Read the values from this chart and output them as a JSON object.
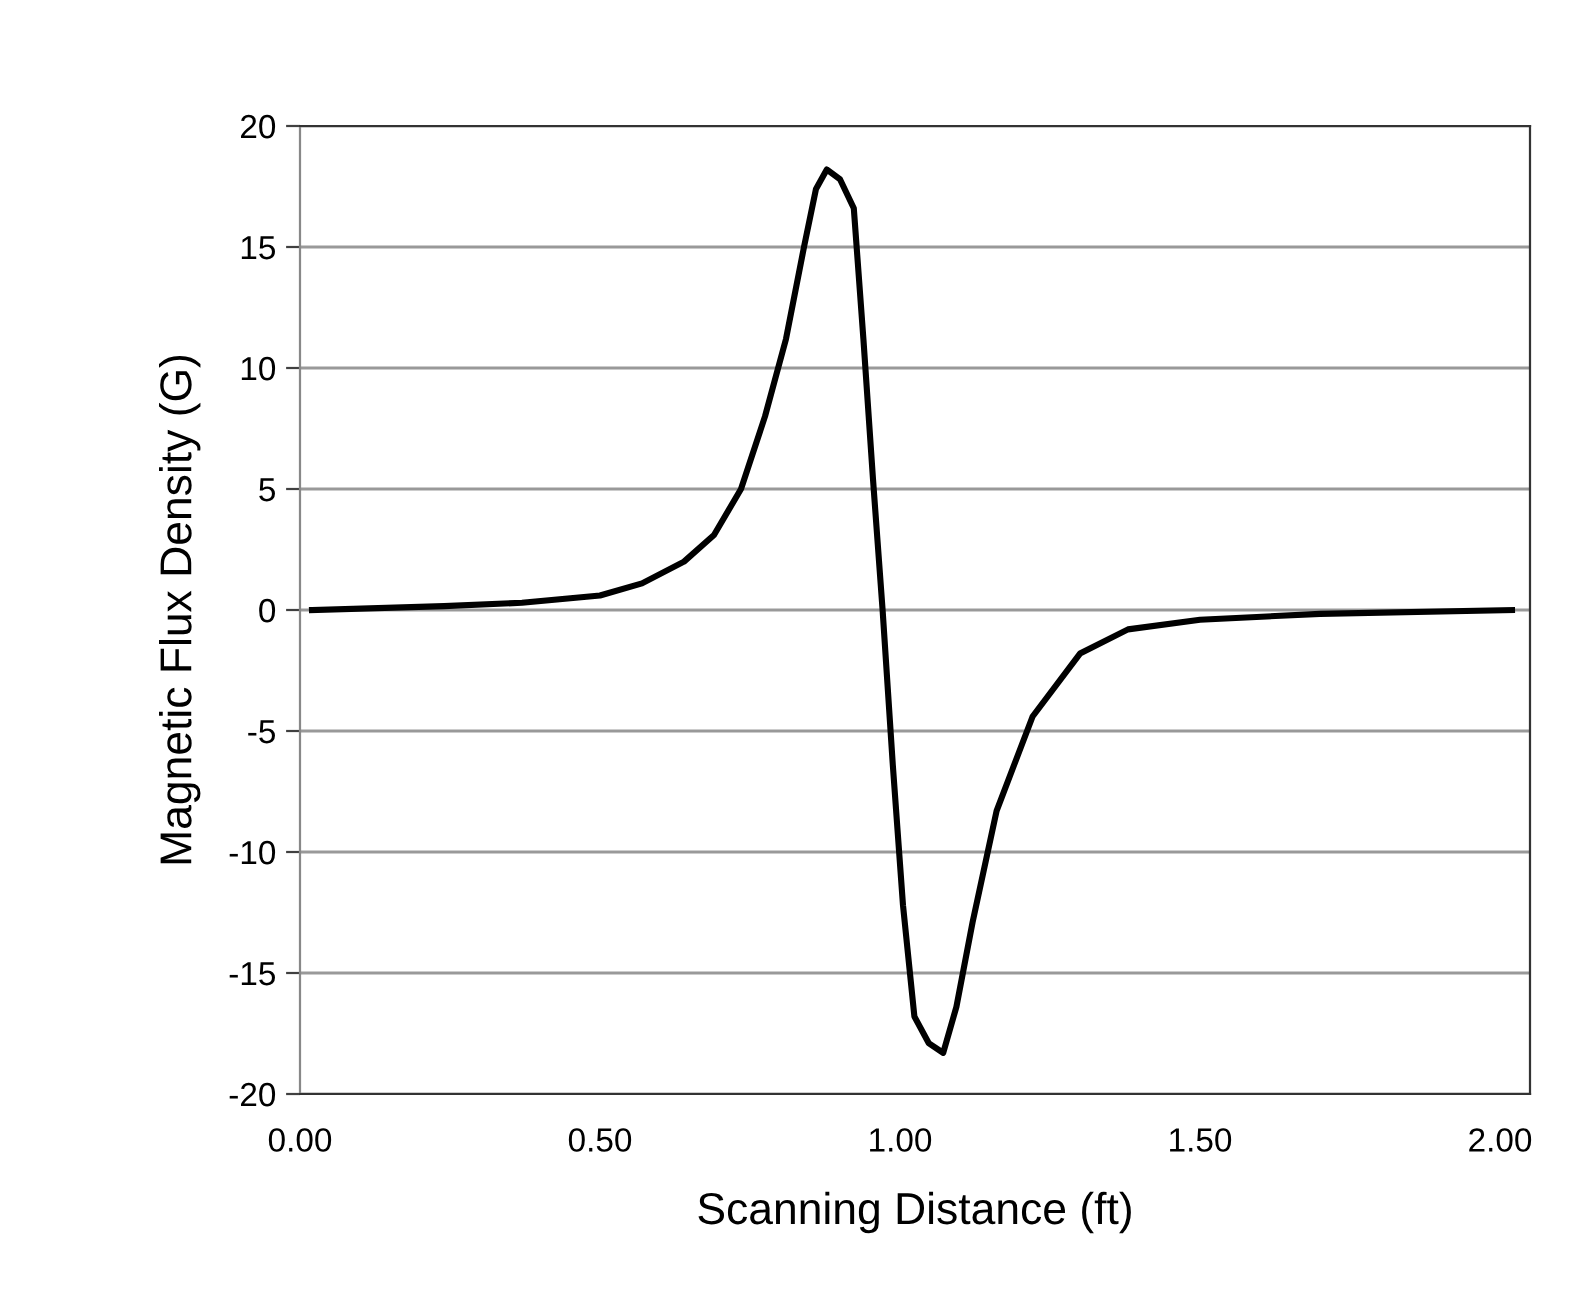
{
  "chart_data": {
    "type": "line",
    "xlabel": "Scanning Distance (ft)",
    "ylabel": "Magnetic Flux Density (G)",
    "xlim": [
      0,
      2.05
    ],
    "ylim": [
      -20,
      20
    ],
    "xticks": [
      {
        "value": 0,
        "label": "0.00"
      },
      {
        "value": 0.5,
        "label": "0.50"
      },
      {
        "value": 1.0,
        "label": "1.00"
      },
      {
        "value": 1.5,
        "label": "1.50"
      },
      {
        "value": 2.0,
        "label": "2.00"
      }
    ],
    "yticks": [
      {
        "value": -20,
        "label": "-20"
      },
      {
        "value": -15,
        "label": "-15"
      },
      {
        "value": -10,
        "label": "-10"
      },
      {
        "value": -5,
        "label": "-5"
      },
      0,
      5,
      10,
      15,
      20
    ],
    "grid": "y",
    "legend": false,
    "marker": "none",
    "line_style": "solid",
    "series": [
      {
        "color": "#000000",
        "x": [
          0.02,
          0.24,
          0.37,
          0.5,
          0.57,
          0.64,
          0.69,
          0.735,
          0.775,
          0.81,
          0.84,
          0.86,
          0.878,
          0.9,
          0.923,
          0.939,
          0.955,
          0.971,
          0.988,
          1.005,
          1.024,
          1.048,
          1.072,
          1.094,
          1.121,
          1.161,
          1.221,
          1.3,
          1.38,
          1.5,
          1.7,
          2.02
        ],
        "values": [
          0,
          0.16,
          0.3,
          0.6,
          1.1,
          2.0,
          3.1,
          5.0,
          8.0,
          11.2,
          15.0,
          17.4,
          18.2,
          17.8,
          16.6,
          11.2,
          5.4,
          0,
          -6.4,
          -12.2,
          -16.8,
          -17.9,
          -18.3,
          -16.4,
          -12.9,
          -8.3,
          -4.4,
          -1.8,
          -0.8,
          -0.4,
          -0.16,
          0
        ]
      }
    ]
  }
}
